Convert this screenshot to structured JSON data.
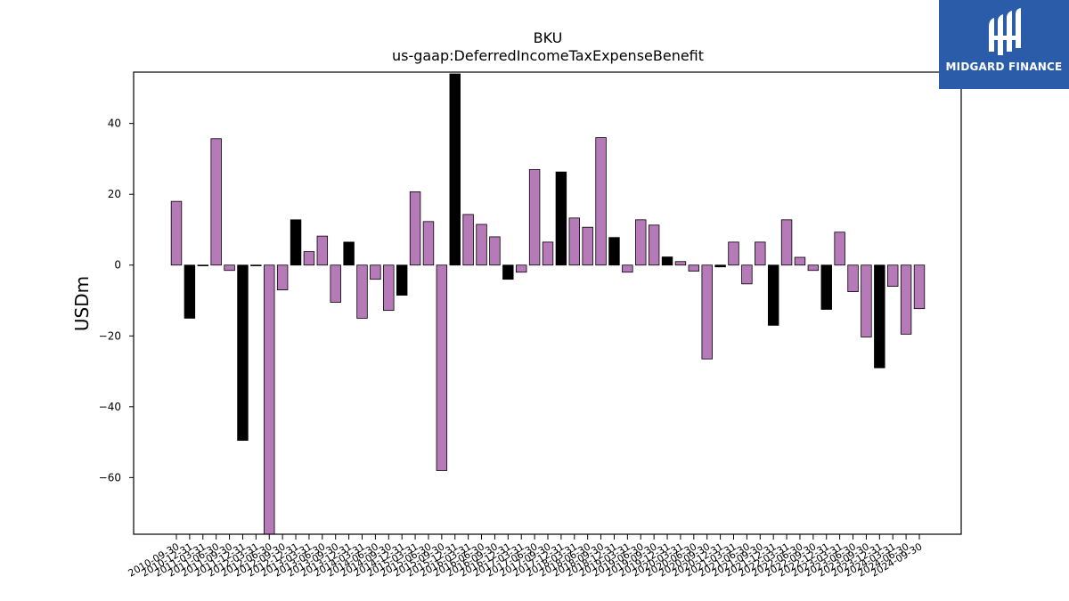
{
  "logo": {
    "text": "MIDGARD FINANCE",
    "icon": "midgard-logo-icon",
    "bg_color": "#2a5caa"
  },
  "chart_data": {
    "type": "bar",
    "title": "BKU",
    "subtitle": "us-gaap:DeferredIncomeTaxExpenseBenefit",
    "xlabel": "",
    "ylabel": "USDm",
    "ylim": [
      -76,
      54.5
    ],
    "yticks": [
      -60,
      -40,
      -20,
      0,
      20,
      40
    ],
    "grid": false,
    "colors": {
      "default": "#b77ab9",
      "q4": "#000000",
      "edge": "#000000"
    },
    "categories": [
      "2010-09-30",
      "2010-12-31",
      "2011-03-31",
      "2011-06-30",
      "2011-09-30",
      "2011-12-31",
      "2012-03-31",
      "2012-06-30",
      "2012-09-30",
      "2012-12-31",
      "2013-03-31",
      "2013-06-30",
      "2013-09-30",
      "2013-12-31",
      "2014-03-31",
      "2014-06-30",
      "2014-09-30",
      "2014-12-31",
      "2015-03-31",
      "2015-06-30",
      "2015-09-30",
      "2015-12-31",
      "2016-03-31",
      "2016-06-30",
      "2016-09-30",
      "2016-12-31",
      "2017-03-31",
      "2017-06-30",
      "2017-09-30",
      "2017-12-31",
      "2018-03-31",
      "2018-06-30",
      "2018-09-30",
      "2018-12-31",
      "2019-03-31",
      "2019-06-30",
      "2019-09-30",
      "2019-12-31",
      "2020-03-31",
      "2020-06-30",
      "2020-09-30",
      "2020-12-31",
      "2021-03-31",
      "2021-06-30",
      "2021-09-30",
      "2021-12-31",
      "2022-03-31",
      "2022-06-30",
      "2022-09-30",
      "2022-12-31",
      "2023-03-31",
      "2023-06-30",
      "2023-09-30",
      "2023-12-31",
      "2024-03-31",
      "2024-06-30",
      "2024-09-30"
    ],
    "values": [
      18,
      -15,
      0,
      35.7,
      -1.5,
      -49.5,
      0,
      -76,
      -7,
      12.8,
      3.8,
      8.2,
      -10.5,
      6.5,
      -15,
      -4,
      -12.8,
      -8.5,
      20.7,
      12.3,
      -58,
      54,
      14.3,
      11.5,
      8,
      -4,
      -2,
      27,
      6.5,
      26.3,
      13.3,
      10.7,
      36,
      7.8,
      -2,
      12.8,
      11.3,
      2.3,
      1,
      -1.7,
      -26.5,
      -0.5,
      6.5,
      -5.3,
      6.5,
      -17,
      12.8,
      2.2,
      -1.5,
      -12.5,
      9.3,
      -7.5,
      -20.3,
      -29,
      -6,
      -19.5,
      -12.3
    ]
  }
}
